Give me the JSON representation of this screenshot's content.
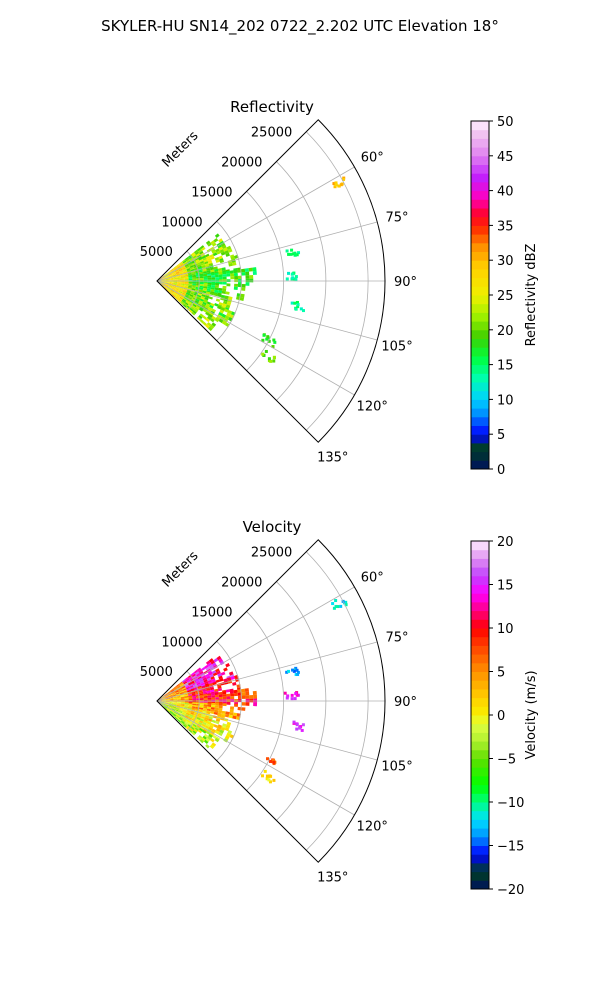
{
  "figure": {
    "title": "SKYLER-HU  SN14_202  0722_2.202 UTC Elevation 18°"
  },
  "chart_data": [
    {
      "type": "heatmap",
      "subtype": "polar-sector",
      "title": "Reflectivity",
      "radial_axis_label": "Meters",
      "radial_ticks": [
        "5000",
        "10000",
        "15000",
        "20000",
        "25000"
      ],
      "radial_tick_values": [
        5000,
        10000,
        15000,
        20000,
        25000
      ],
      "rmax": 27000,
      "angular_range": [
        45,
        135
      ],
      "angular_ticks": [
        "60°",
        "75°",
        "90°",
        "105°",
        "120°",
        "135°"
      ],
      "angular_tick_values": [
        60,
        75,
        90,
        105,
        120,
        135
      ],
      "grid": true,
      "colorbar": {
        "label": "Reflectivity dBZ",
        "range": [
          0,
          50
        ],
        "ticks": [
          "0",
          "5",
          "10",
          "15",
          "20",
          "25",
          "30",
          "35",
          "40",
          "45",
          "50"
        ],
        "tick_values": [
          0,
          5,
          10,
          15,
          20,
          25,
          30,
          35,
          40,
          45,
          50
        ],
        "stops": [
          [
            0,
            "#001060"
          ],
          [
            3,
            "#004020"
          ],
          [
            5,
            "#0000ff"
          ],
          [
            8,
            "#0090ff"
          ],
          [
            10,
            "#00d0ff"
          ],
          [
            13,
            "#00ffb0"
          ],
          [
            16,
            "#00ff40"
          ],
          [
            19,
            "#40d000"
          ],
          [
            22,
            "#a0f000"
          ],
          [
            25,
            "#f0f000"
          ],
          [
            29,
            "#ffd000"
          ],
          [
            32,
            "#ff9000"
          ],
          [
            35,
            "#ff2000"
          ],
          [
            37,
            "#ff0040"
          ],
          [
            39,
            "#ff00c0"
          ],
          [
            42,
            "#c020ff"
          ],
          [
            45,
            "#e080f0"
          ],
          [
            48,
            "#f0c0f0"
          ],
          [
            50,
            "#fff0ff"
          ]
        ]
      },
      "field": {
        "description_values": "dBZ by azimuth band",
        "core_range_m": 9000,
        "bands": [
          {
            "az_deg": [
              52,
              62
            ],
            "r_m": [
              0,
              9000
            ],
            "value": 21
          },
          {
            "az_deg": [
              62,
              72
            ],
            "r_m": [
              0,
              9500
            ],
            "value": 22
          },
          {
            "az_deg": [
              72,
              82
            ],
            "r_m": [
              0,
              9800
            ],
            "value": 20
          },
          {
            "az_deg": [
              82,
              92
            ],
            "r_m": [
              0,
              11500
            ],
            "value": 18
          },
          {
            "az_deg": [
              92,
              102
            ],
            "r_m": [
              0,
              10500
            ],
            "value": 19
          },
          {
            "az_deg": [
              102,
              112
            ],
            "r_m": [
              0,
              9000
            ],
            "value": 21
          },
          {
            "az_deg": [
              112,
              122
            ],
            "r_m": [
              0,
              10000
            ],
            "value": 20
          },
          {
            "az_deg": [
              122,
              132
            ],
            "r_m": [
              0,
              8500
            ],
            "value": 22
          }
        ],
        "near_core": {
          "r_m": [
            0,
            3500
          ],
          "value": 33
        },
        "echoes": [
          {
            "az_deg": 78,
            "r_m": 16500,
            "value": 15
          },
          {
            "az_deg": 88,
            "r_m": 16000,
            "value": 14
          },
          {
            "az_deg": 118,
            "r_m": 15000,
            "value": 18
          },
          {
            "az_deg": 124,
            "r_m": 16000,
            "value": 20
          },
          {
            "az_deg": 62,
            "r_m": 24500,
            "value": 30
          },
          {
            "az_deg": 100,
            "r_m": 17000,
            "value": 14
          }
        ]
      }
    },
    {
      "type": "heatmap",
      "subtype": "polar-sector",
      "title": "Velocity",
      "radial_axis_label": "Meters",
      "radial_ticks": [
        "5000",
        "10000",
        "15000",
        "20000",
        "25000"
      ],
      "radial_tick_values": [
        5000,
        10000,
        15000,
        20000,
        25000
      ],
      "rmax": 27000,
      "angular_range": [
        45,
        135
      ],
      "angular_ticks": [
        "60°",
        "75°",
        "90°",
        "105°",
        "120°",
        "135°"
      ],
      "angular_tick_values": [
        60,
        75,
        90,
        105,
        120,
        135
      ],
      "grid": true,
      "colorbar": {
        "label": "Velocity (m/s)",
        "range": [
          -20,
          20
        ],
        "ticks": [
          "−20",
          "−15",
          "−10",
          "−5",
          "0",
          "5",
          "10",
          "15",
          "20"
        ],
        "tick_values": [
          -20,
          -15,
          -10,
          -5,
          0,
          5,
          10,
          15,
          20
        ],
        "stops": [
          [
            -20,
            "#001060"
          ],
          [
            -18,
            "#004020"
          ],
          [
            -16,
            "#0000ff"
          ],
          [
            -14,
            "#0090ff"
          ],
          [
            -12,
            "#00e0ff"
          ],
          [
            -10,
            "#00ff80"
          ],
          [
            -8,
            "#00ff00"
          ],
          [
            -5,
            "#60e000"
          ],
          [
            -3,
            "#b0f030"
          ],
          [
            -1,
            "#e0ff40"
          ],
          [
            0,
            "#f8f000"
          ],
          [
            2,
            "#ffd000"
          ],
          [
            5,
            "#ff9000"
          ],
          [
            8,
            "#ff4000"
          ],
          [
            10,
            "#ff0000"
          ],
          [
            12,
            "#ff0080"
          ],
          [
            14,
            "#ff00ff"
          ],
          [
            16,
            "#c040ff"
          ],
          [
            18,
            "#e090f0"
          ],
          [
            20,
            "#fff0ff"
          ]
        ]
      },
      "field": {
        "description_values": "m/s by azimuth band",
        "core_range_m": 9000,
        "bands": [
          {
            "az_deg": [
              52,
              62
            ],
            "r_m": [
              0,
              9000
            ],
            "value": 14
          },
          {
            "az_deg": [
              62,
              72
            ],
            "r_m": [
              0,
              9500
            ],
            "value": 13
          },
          {
            "az_deg": [
              72,
              82
            ],
            "r_m": [
              0,
              9800
            ],
            "value": 10
          },
          {
            "az_deg": [
              82,
              92
            ],
            "r_m": [
              0,
              11500
            ],
            "value": 9
          },
          {
            "az_deg": [
              92,
              102
            ],
            "r_m": [
              0,
              10500
            ],
            "value": 4
          },
          {
            "az_deg": [
              102,
              112
            ],
            "r_m": [
              0,
              9000
            ],
            "value": 1
          },
          {
            "az_deg": [
              112,
              122
            ],
            "r_m": [
              0,
              10000
            ],
            "value": 0
          },
          {
            "az_deg": [
              122,
              132
            ],
            "r_m": [
              0,
              8500
            ],
            "value": -2
          }
        ],
        "near_core": {
          "r_m": [
            0,
            3500
          ],
          "value": -3
        },
        "echoes": [
          {
            "az_deg": 78,
            "r_m": 16500,
            "value": -13
          },
          {
            "az_deg": 88,
            "r_m": 16000,
            "value": 14
          },
          {
            "az_deg": 118,
            "r_m": 15000,
            "value": 7
          },
          {
            "az_deg": 124,
            "r_m": 16000,
            "value": 1
          },
          {
            "az_deg": 62,
            "r_m": 24500,
            "value": -12
          },
          {
            "az_deg": 100,
            "r_m": 17000,
            "value": 15
          }
        ]
      }
    }
  ]
}
